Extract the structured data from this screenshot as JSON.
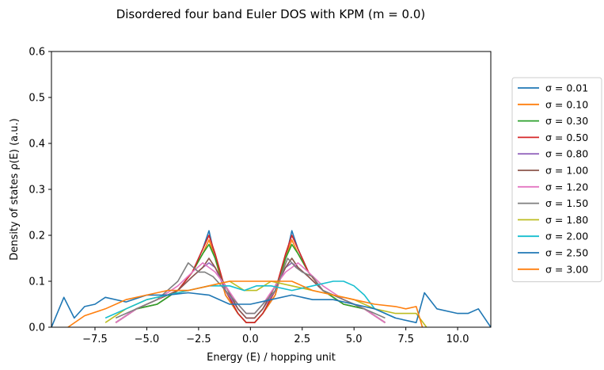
{
  "chart_data": {
    "type": "line",
    "title": "Disordered four band Euler DOS with KPM (m = 0.0)",
    "xlabel": "Energy (E) / hopping unit",
    "ylabel": "Density of states ρ(E) (a.u.)",
    "xlim": [
      -9.6,
      11.6
    ],
    "ylim": [
      0,
      0.6
    ],
    "xticks": [
      -7.5,
      -5.0,
      -2.5,
      0.0,
      2.5,
      5.0,
      7.5,
      10.0
    ],
    "xtick_labels": [
      "−7.5",
      "−5.0",
      "−2.5",
      "0.0",
      "2.5",
      "5.0",
      "7.5",
      "10.0"
    ],
    "yticks": [
      0.0,
      0.1,
      0.2,
      0.3,
      0.4,
      0.5,
      0.6
    ],
    "ytick_labels": [
      "0.0",
      "0.1",
      "0.2",
      "0.3",
      "0.4",
      "0.5",
      "0.6"
    ],
    "grid": false,
    "legend_position": "outside right",
    "series": [
      {
        "name": "σ = 0.01",
        "color": "#1f77b4",
        "x": [
          -6.5,
          -5.5,
          -4.5,
          -3.5,
          -2.8,
          -2.3,
          -2.0,
          -1.7,
          -1.2,
          -0.6,
          -0.2,
          0.2,
          0.6,
          1.2,
          1.7,
          2.0,
          2.3,
          2.8,
          3.5,
          4.5,
          5.5,
          6.5
        ],
        "y": [
          0.01,
          0.04,
          0.05,
          0.08,
          0.12,
          0.17,
          0.21,
          0.15,
          0.07,
          0.03,
          0.01,
          0.01,
          0.03,
          0.07,
          0.15,
          0.21,
          0.17,
          0.12,
          0.08,
          0.05,
          0.04,
          0.01
        ]
      },
      {
        "name": "σ = 0.10",
        "color": "#ff7f0e",
        "x": [
          -6.5,
          -5.5,
          -4.5,
          -3.5,
          -2.8,
          -2.3,
          -2.0,
          -1.7,
          -1.2,
          -0.6,
          -0.2,
          0.2,
          0.6,
          1.2,
          1.7,
          2.0,
          2.3,
          2.8,
          3.5,
          4.5,
          5.5,
          6.5
        ],
        "y": [
          0.01,
          0.04,
          0.05,
          0.08,
          0.12,
          0.16,
          0.19,
          0.15,
          0.07,
          0.03,
          0.01,
          0.01,
          0.03,
          0.07,
          0.15,
          0.19,
          0.16,
          0.12,
          0.08,
          0.05,
          0.04,
          0.01
        ]
      },
      {
        "name": "σ = 0.30",
        "color": "#2ca02c",
        "x": [
          -6.5,
          -5.5,
          -4.5,
          -3.5,
          -2.8,
          -2.3,
          -2.0,
          -1.7,
          -1.2,
          -0.6,
          -0.2,
          0.2,
          0.6,
          1.2,
          1.7,
          2.0,
          2.3,
          2.8,
          3.5,
          4.5,
          5.5,
          6.5
        ],
        "y": [
          0.01,
          0.04,
          0.05,
          0.08,
          0.12,
          0.16,
          0.18,
          0.15,
          0.08,
          0.03,
          0.01,
          0.01,
          0.03,
          0.08,
          0.15,
          0.18,
          0.16,
          0.12,
          0.08,
          0.05,
          0.04,
          0.01
        ]
      },
      {
        "name": "σ = 0.50",
        "color": "#d62728",
        "x": [
          -6.5,
          -5.5,
          -4.5,
          -3.5,
          -2.8,
          -2.3,
          -2.0,
          -1.7,
          -1.2,
          -0.6,
          -0.2,
          0.2,
          0.6,
          1.2,
          1.7,
          2.0,
          2.3,
          2.8,
          3.5,
          4.5,
          5.5,
          6.5
        ],
        "y": [
          0.01,
          0.04,
          0.06,
          0.08,
          0.12,
          0.17,
          0.2,
          0.16,
          0.08,
          0.03,
          0.01,
          0.01,
          0.03,
          0.08,
          0.16,
          0.2,
          0.17,
          0.12,
          0.08,
          0.06,
          0.04,
          0.01
        ]
      },
      {
        "name": "σ = 0.80",
        "color": "#9467bd",
        "x": [
          -6.5,
          -5.5,
          -4.5,
          -3.5,
          -2.8,
          -2.3,
          -2.0,
          -1.7,
          -1.2,
          -0.6,
          -0.2,
          0.2,
          0.6,
          1.2,
          1.7,
          2.0,
          2.3,
          2.8,
          3.5,
          4.5,
          5.5,
          6.5
        ],
        "y": [
          0.01,
          0.04,
          0.06,
          0.08,
          0.11,
          0.13,
          0.14,
          0.13,
          0.08,
          0.04,
          0.02,
          0.02,
          0.04,
          0.08,
          0.13,
          0.14,
          0.13,
          0.11,
          0.08,
          0.06,
          0.04,
          0.01
        ]
      },
      {
        "name": "σ = 1.00",
        "color": "#8c564b",
        "x": [
          -6.5,
          -5.5,
          -4.5,
          -3.5,
          -2.8,
          -2.3,
          -2.0,
          -1.7,
          -1.2,
          -0.6,
          -0.2,
          0.2,
          0.6,
          1.2,
          1.7,
          2.0,
          2.3,
          2.8,
          3.5,
          4.5,
          5.5,
          6.5
        ],
        "y": [
          0.01,
          0.04,
          0.06,
          0.08,
          0.11,
          0.13,
          0.15,
          0.13,
          0.09,
          0.04,
          0.02,
          0.02,
          0.04,
          0.09,
          0.13,
          0.15,
          0.13,
          0.11,
          0.08,
          0.06,
          0.04,
          0.01
        ]
      },
      {
        "name": "σ = 1.20",
        "color": "#e377c2",
        "x": [
          -6.5,
          -5.5,
          -4.5,
          -3.5,
          -2.8,
          -2.3,
          -2.0,
          -1.7,
          -1.2,
          -0.6,
          -0.2,
          0.2,
          0.6,
          1.2,
          1.7,
          2.0,
          2.3,
          2.8,
          3.5,
          4.5,
          5.5,
          6.5
        ],
        "y": [
          0.01,
          0.04,
          0.06,
          0.09,
          0.12,
          0.14,
          0.13,
          0.12,
          0.09,
          0.05,
          0.03,
          0.03,
          0.05,
          0.09,
          0.12,
          0.13,
          0.14,
          0.12,
          0.09,
          0.06,
          0.04,
          0.01
        ]
      },
      {
        "name": "σ = 1.50",
        "color": "#7f7f7f",
        "x": [
          -6.5,
          -5.5,
          -4.5,
          -3.5,
          -3.0,
          -2.5,
          -2.2,
          -1.8,
          -1.2,
          -0.6,
          -0.2,
          0.2,
          0.6,
          1.2,
          1.8,
          2.2,
          2.5,
          3.0,
          3.5,
          4.5,
          5.5,
          6.5
        ],
        "y": [
          0.02,
          0.04,
          0.06,
          0.1,
          0.14,
          0.12,
          0.12,
          0.11,
          0.08,
          0.05,
          0.03,
          0.03,
          0.05,
          0.08,
          0.15,
          0.13,
          0.12,
          0.11,
          0.08,
          0.06,
          0.04,
          0.02
        ]
      },
      {
        "name": "σ = 1.80",
        "color": "#bcbd22",
        "x": [
          -7.0,
          -6.0,
          -5.0,
          -4.0,
          -3.0,
          -2.0,
          -1.0,
          -0.3,
          0.3,
          1.0,
          2.0,
          3.0,
          4.0,
          5.0,
          6.0,
          7.0,
          8.0,
          8.5
        ],
        "y": [
          0.01,
          0.04,
          0.06,
          0.07,
          0.08,
          0.09,
          0.1,
          0.08,
          0.08,
          0.1,
          0.09,
          0.08,
          0.07,
          0.06,
          0.04,
          0.03,
          0.03,
          0.0
        ]
      },
      {
        "name": "σ = 2.00",
        "color": "#17becf",
        "x": [
          -7.0,
          -6.0,
          -5.0,
          -4.0,
          -3.0,
          -2.0,
          -1.0,
          -0.3,
          0.3,
          1.0,
          2.0,
          3.0,
          4.0,
          4.5,
          5.0,
          5.5,
          6.0,
          7.0
        ],
        "y": [
          0.02,
          0.04,
          0.06,
          0.07,
          0.08,
          0.09,
          0.09,
          0.08,
          0.09,
          0.09,
          0.08,
          0.09,
          0.1,
          0.1,
          0.09,
          0.07,
          0.04,
          0.02
        ]
      },
      {
        "name": "σ = 2.50",
        "color": "#1f77b4",
        "x": [
          -9.6,
          -9.0,
          -8.5,
          -8.0,
          -7.5,
          -7.0,
          -6.0,
          -5.0,
          -4.0,
          -3.0,
          -2.0,
          -1.0,
          0.0,
          1.0,
          2.0,
          3.0,
          4.0,
          5.0,
          6.0,
          7.0,
          8.0,
          8.4,
          9.0,
          10.0,
          10.5,
          11.0,
          11.6
        ],
        "y": [
          0.0,
          0.065,
          0.02,
          0.045,
          0.05,
          0.065,
          0.055,
          0.07,
          0.07,
          0.075,
          0.07,
          0.05,
          0.05,
          0.06,
          0.07,
          0.06,
          0.06,
          0.05,
          0.04,
          0.02,
          0.01,
          0.075,
          0.04,
          0.03,
          0.03,
          0.04,
          0.0
        ]
      },
      {
        "name": "σ = 3.00",
        "color": "#ff7f0e",
        "x": [
          -8.8,
          -8.0,
          -7.0,
          -6.0,
          -5.0,
          -4.0,
          -3.0,
          -2.0,
          -1.0,
          -0.3,
          0.3,
          1.0,
          2.0,
          3.0,
          4.0,
          5.0,
          6.0,
          7.0,
          7.5,
          8.0,
          8.3
        ],
        "y": [
          0.0,
          0.025,
          0.04,
          0.06,
          0.07,
          0.08,
          0.08,
          0.09,
          0.1,
          0.1,
          0.1,
          0.1,
          0.1,
          0.08,
          0.07,
          0.06,
          0.05,
          0.045,
          0.04,
          0.045,
          0.0
        ]
      }
    ]
  }
}
